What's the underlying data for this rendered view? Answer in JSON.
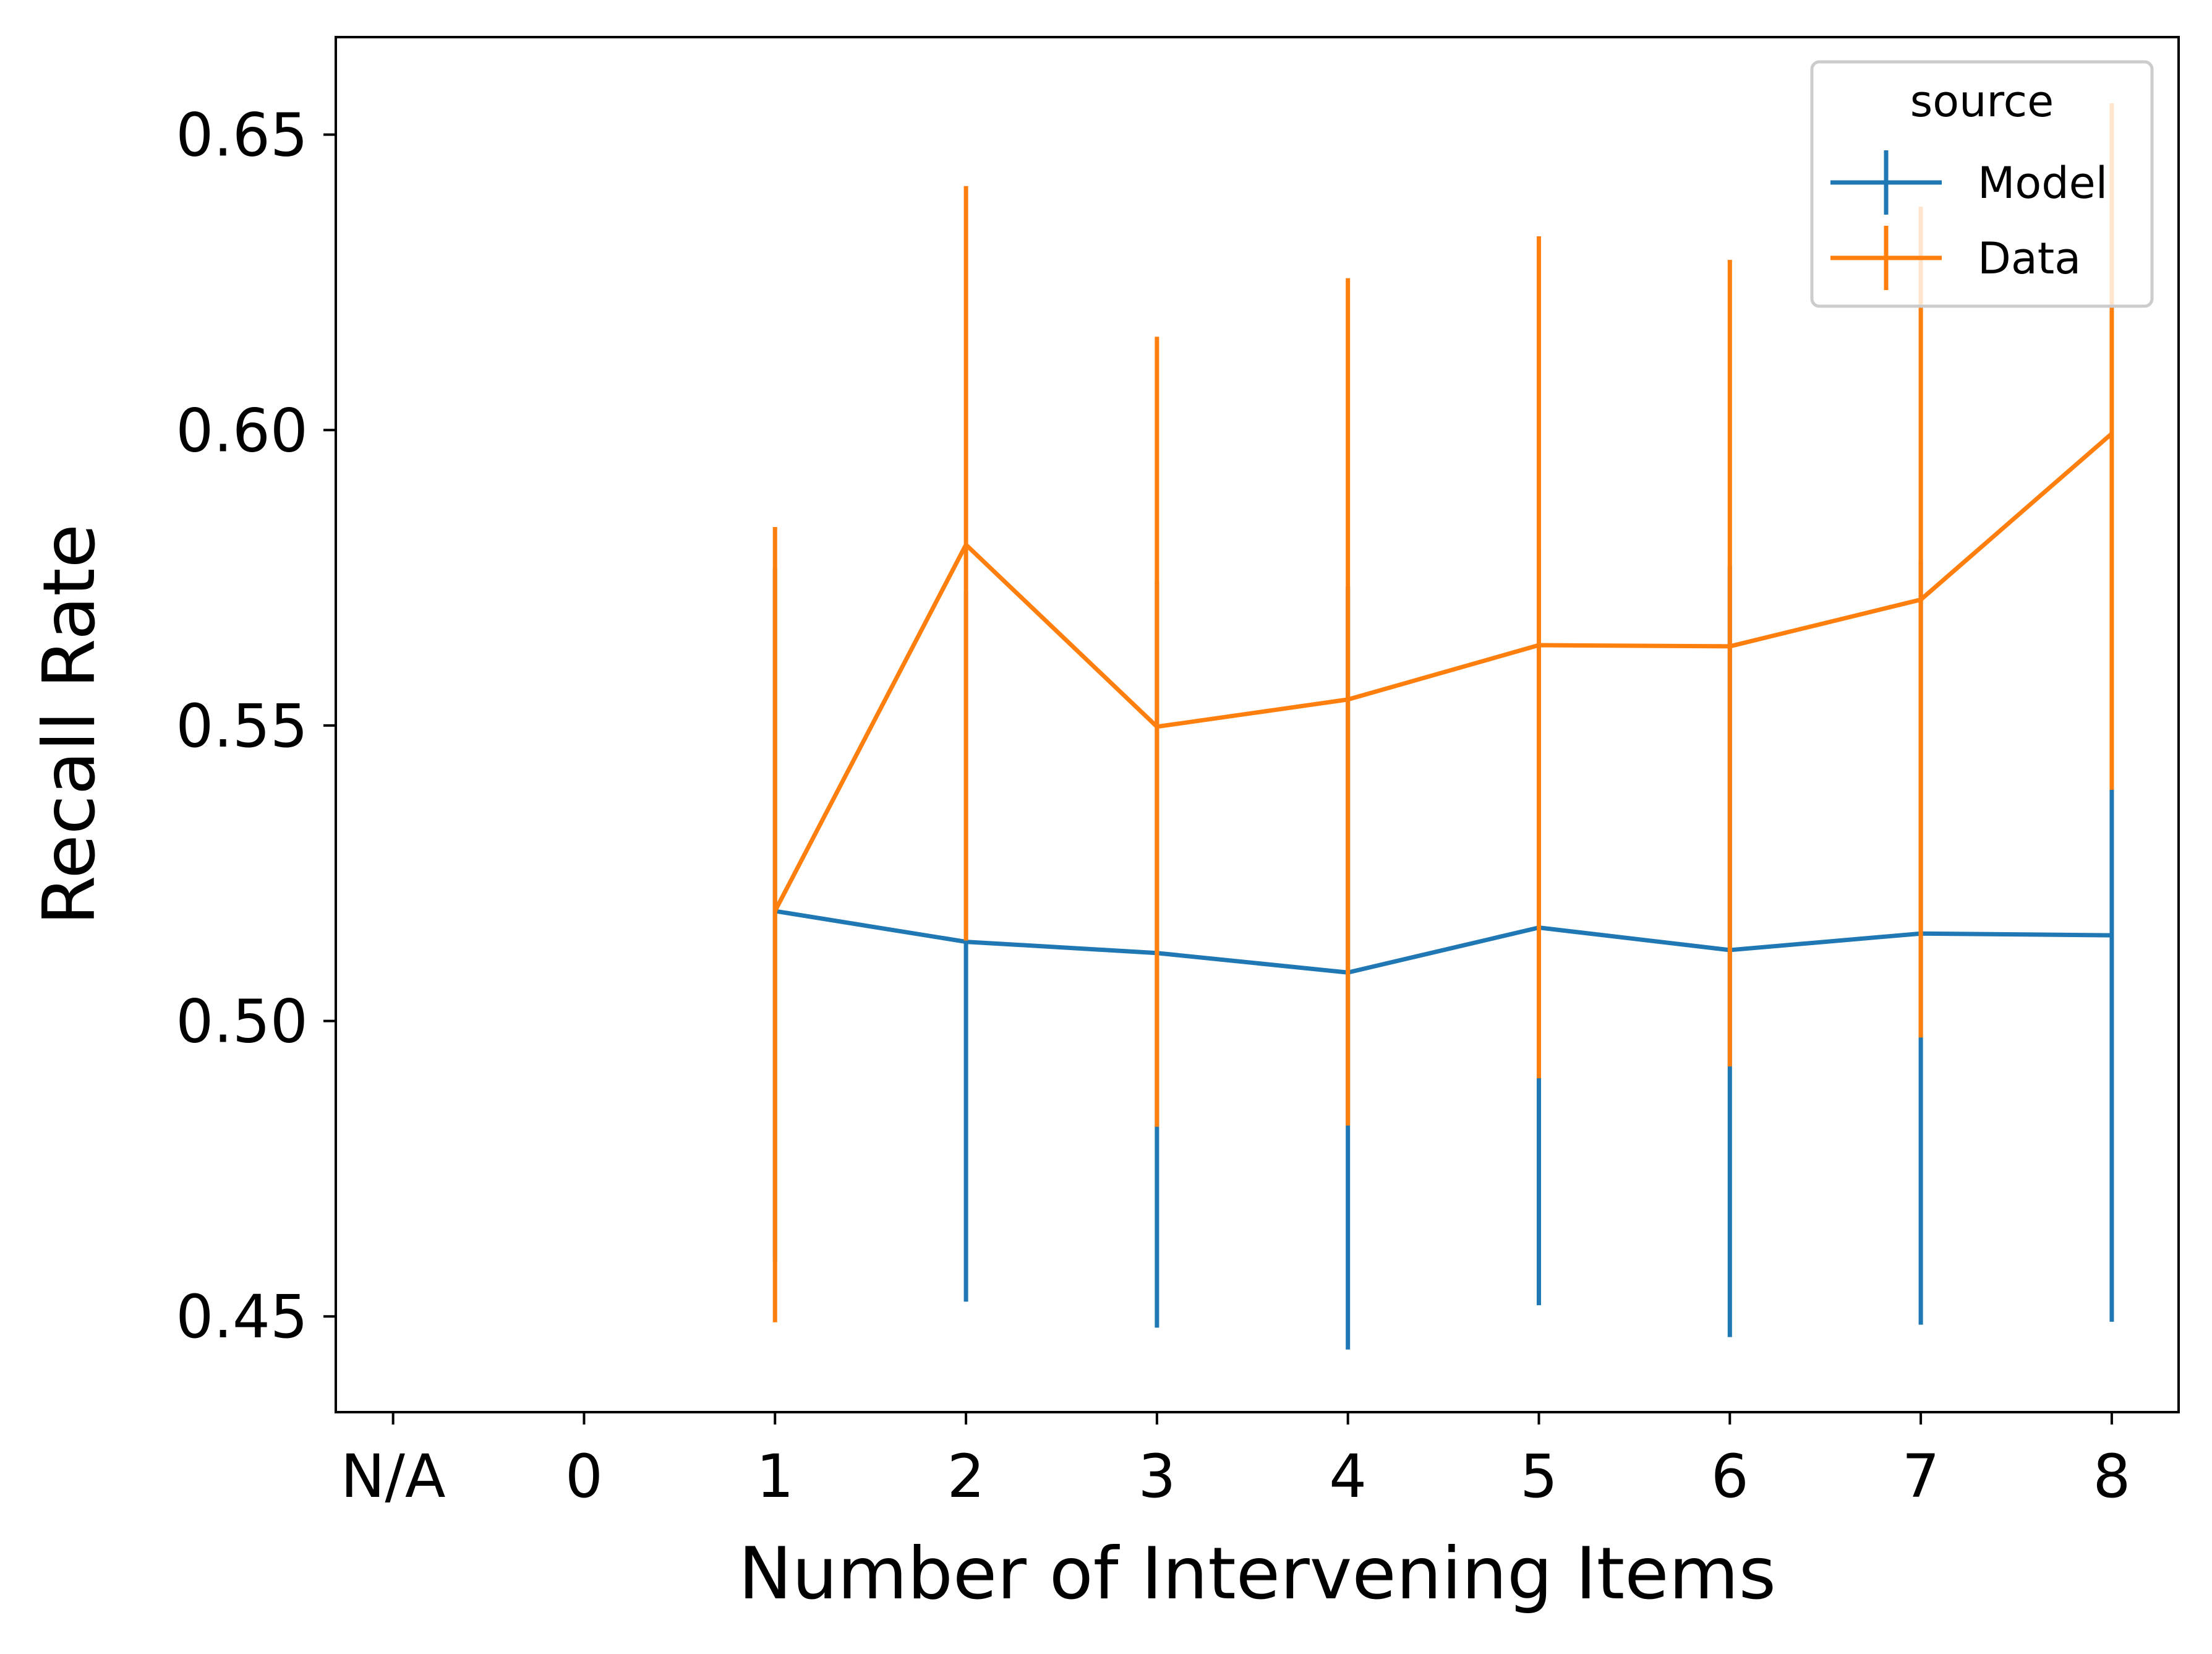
{
  "chart_data": {
    "type": "line",
    "xlabel": "Number of Intervening Items",
    "ylabel": "Recall Rate",
    "x_ticks": [
      "N/A",
      "0",
      "1",
      "2",
      "3",
      "4",
      "5",
      "6",
      "7",
      "8"
    ],
    "y_ticks": [
      "0.45",
      "0.50",
      "0.55",
      "0.60",
      "0.65"
    ],
    "ylim": [
      0.4338,
      0.6665
    ],
    "grid": false,
    "legend": {
      "title": "source",
      "position": "top-right"
    },
    "series": [
      {
        "name": "Model",
        "color": "#1f77b4",
        "x": [
          1,
          2,
          3,
          4,
          5,
          6,
          7,
          8
        ],
        "y": [
          0.5186,
          0.5134,
          0.5115,
          0.5082,
          0.5158,
          0.512,
          0.5148,
          0.5145
        ],
        "err_low": [
          0.4593,
          0.4525,
          0.4481,
          0.4444,
          0.4519,
          0.4465,
          0.4486,
          0.4491
        ],
        "err_high": [
          0.5766,
          0.5727,
          0.5744,
          0.5735,
          0.58,
          0.577,
          0.5779,
          0.5391
        ]
      },
      {
        "name": "Data",
        "color": "#ff7f0e",
        "x": [
          1,
          2,
          3,
          4,
          5,
          6,
          7,
          8
        ],
        "y": [
          0.5186,
          0.5806,
          0.5498,
          0.5544,
          0.5636,
          0.5634,
          0.5713,
          0.5994
        ],
        "err_low": [
          0.449,
          0.5136,
          0.4821,
          0.4823,
          0.4903,
          0.4923,
          0.4972,
          0.5391
        ],
        "err_high": [
          0.5836,
          0.6413,
          0.6158,
          0.6257,
          0.6328,
          0.6288,
          0.6378,
          0.6553
        ]
      }
    ]
  }
}
